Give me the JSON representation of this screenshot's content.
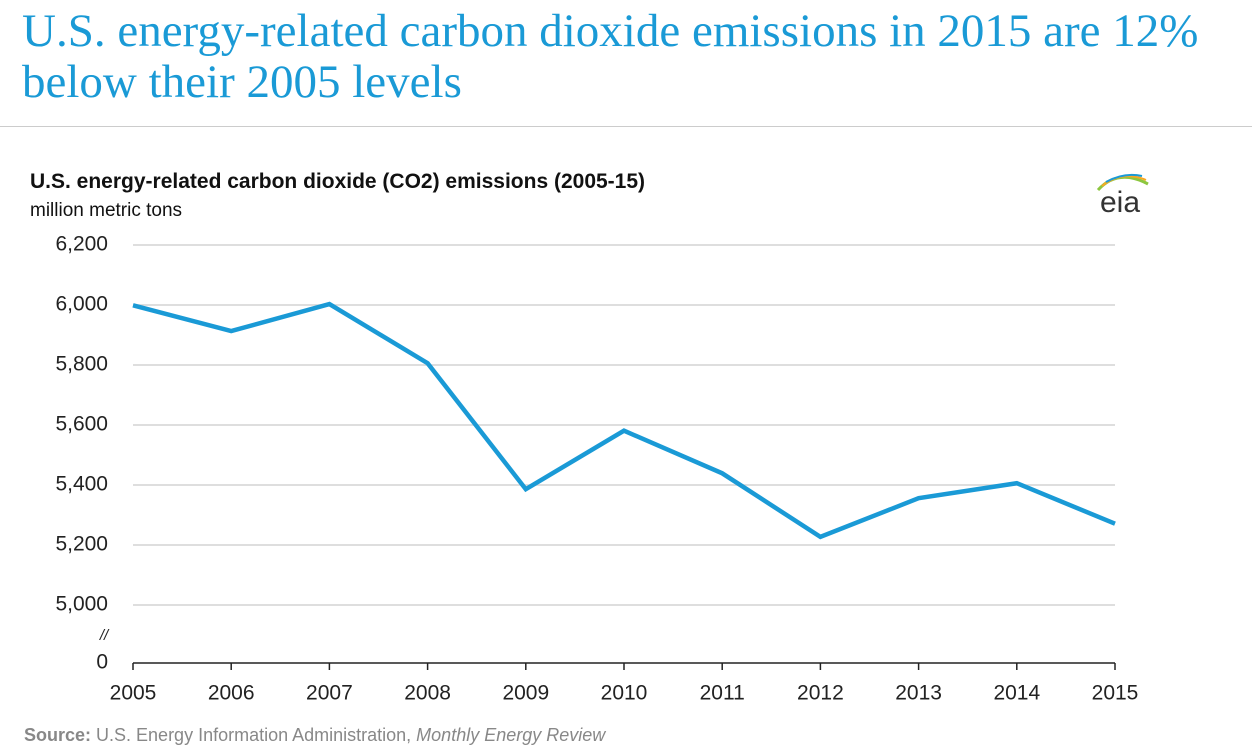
{
  "chart_data": {
    "type": "line",
    "headline": "U.S. energy-related carbon dioxide emissions in 2015 are 12% below their 2005 levels",
    "title": "U.S. energy-related carbon dioxide (CO2) emissions (2005-15)",
    "subtitle": "million metric tons",
    "logo": "eia",
    "categories": [
      "2005",
      "2006",
      "2007",
      "2008",
      "2009",
      "2010",
      "2011",
      "2012",
      "2013",
      "2014",
      "2015"
    ],
    "series": [
      {
        "name": "CO2 emissions",
        "color": "#1a9ad6",
        "values": [
          5999,
          5913,
          6003,
          5806,
          5386,
          5581,
          5439,
          5227,
          5356,
          5406,
          5271
        ]
      }
    ],
    "ylim": [
      0,
      6200
    ],
    "yticks": [
      0,
      {
        "value": 5000,
        "label": "5,000"
      },
      {
        "value": 5200,
        "label": "5,200"
      },
      {
        "value": 5400,
        "label": "5,400"
      },
      {
        "value": 5600,
        "label": "5,600"
      },
      {
        "value": 5800,
        "label": "5,800"
      },
      {
        "value": 6000,
        "label": "6,000"
      },
      {
        "value": 6200,
        "label": "6,200"
      }
    ],
    "axis_break": {
      "from": 0,
      "to": 5000,
      "label": "//"
    },
    "grid": true,
    "source": {
      "label": "Source:",
      "text": "U.S. Energy Information Administration,",
      "publication": "Monthly Energy Review"
    }
  }
}
